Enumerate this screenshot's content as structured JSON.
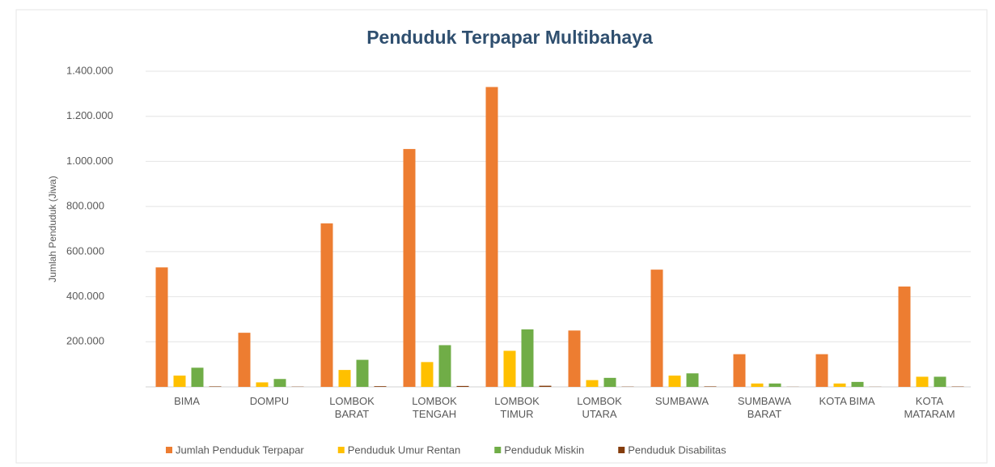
{
  "chart_data": {
    "type": "bar",
    "title": "Penduduk Terpapar Multibahaya",
    "y_label": "Jumlah Penduduk (Jiwa)",
    "categories": [
      "BIMA",
      "DOMPU",
      "LOMBOK BARAT",
      "LOMBOK TENGAH",
      "LOMBOK TIMUR",
      "LOMBOK UTARA",
      "SUMBAWA",
      "SUMBAWA BARAT",
      "KOTA BIMA",
      "KOTA MATARAM"
    ],
    "series": [
      {
        "name": "Jumlah Penduduk Terpapar",
        "color": "#ed7d31",
        "values": [
          530000,
          240000,
          725000,
          1055000,
          1330000,
          250000,
          520000,
          145000,
          145000,
          445000
        ]
      },
      {
        "name": "Penduduk Umur Rentan",
        "color": "#ffc000",
        "values": [
          50000,
          20000,
          75000,
          110000,
          160000,
          30000,
          50000,
          15000,
          15000,
          45000
        ]
      },
      {
        "name": "Penduduk Miskin",
        "color": "#70ad47",
        "values": [
          85000,
          35000,
          120000,
          185000,
          255000,
          40000,
          60000,
          15000,
          22000,
          45000
        ]
      },
      {
        "name": "Penduduk Disabilitas",
        "color": "#843c0c",
        "values": [
          2000,
          1000,
          3000,
          4000,
          5000,
          1000,
          2000,
          500,
          500,
          1500
        ]
      }
    ],
    "ylim": [
      0,
      1400000
    ],
    "yticks": [
      {
        "value": 200000,
        "label": "200.000"
      },
      {
        "value": 400000,
        "label": "400.000"
      },
      {
        "value": 600000,
        "label": "600.000"
      },
      {
        "value": 800000,
        "label": "800.000"
      },
      {
        "value": 1000000,
        "label": "1.000.000"
      },
      {
        "value": 1200000,
        "label": "1.200.000"
      },
      {
        "value": 1400000,
        "label": "1.400.000"
      }
    ],
    "grid": true
  }
}
